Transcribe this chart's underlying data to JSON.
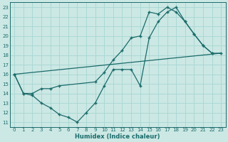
{
  "xlabel": "Humidex (Indice chaleur)",
  "bg_color": "#cce8e4",
  "grid_color": "#aad8d4",
  "line_color": "#1a6b6b",
  "xlim": [
    -0.5,
    23.5
  ],
  "ylim": [
    10.5,
    23.5
  ],
  "xticks": [
    0,
    1,
    2,
    3,
    4,
    5,
    6,
    7,
    8,
    9,
    10,
    11,
    12,
    13,
    14,
    15,
    16,
    17,
    18,
    19,
    20,
    21,
    22,
    23
  ],
  "yticks": [
    11,
    12,
    13,
    14,
    15,
    16,
    17,
    18,
    19,
    20,
    21,
    22,
    23
  ],
  "line1": {
    "x": [
      0,
      1,
      2,
      3,
      4,
      5,
      6,
      7,
      8,
      9,
      10,
      11,
      12,
      13,
      14,
      15,
      16,
      17,
      18,
      19,
      20,
      21,
      22
    ],
    "y": [
      16,
      14,
      13.8,
      13,
      12.5,
      11.8,
      11.5,
      11,
      12,
      13,
      14.8,
      16.5,
      16.5,
      16.5,
      14.8,
      19.8,
      21.5,
      22.5,
      23,
      21.5,
      20.2,
      19,
      18.2
    ]
  },
  "line2": {
    "x": [
      0,
      1,
      2,
      3,
      4,
      5,
      9,
      10,
      11,
      12,
      13,
      14,
      15,
      16,
      17,
      18,
      19,
      20,
      21,
      22,
      23
    ],
    "y": [
      16,
      14,
      14,
      14.5,
      14.5,
      14.8,
      15.2,
      16.2,
      17.5,
      18.5,
      19.8,
      20,
      22.5,
      22.3,
      23,
      22.5,
      21.5,
      20.2,
      19,
      18.2,
      18.2
    ]
  },
  "line3": {
    "x": [
      0,
      23
    ],
    "y": [
      16,
      18.2
    ]
  }
}
